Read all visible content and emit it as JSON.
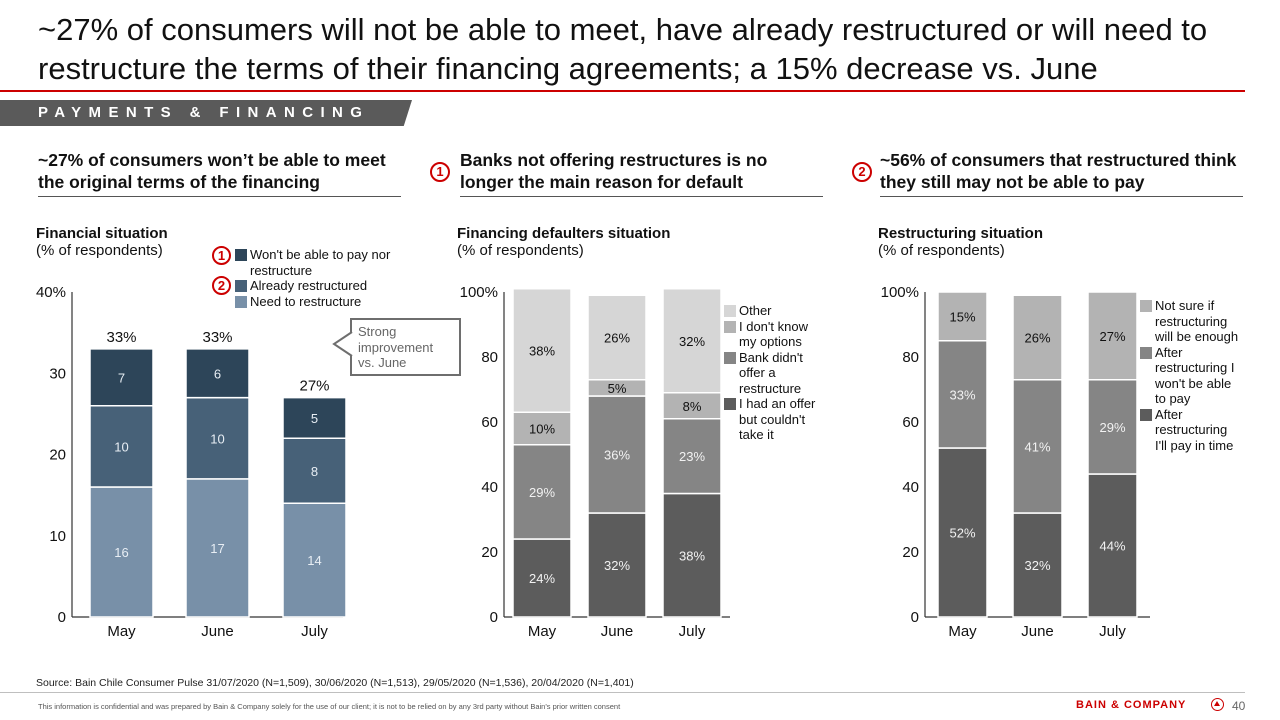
{
  "header": {
    "title": "~27% of consumers will not be able to meet, have already restructured or will need to restructure the terms of their financing agreements; a 15% decrease vs. June",
    "section": "PAYMENTS & FINANCING"
  },
  "panels": [
    {
      "badge": "",
      "heading": "~27% of consumers won’t be able to meet the original terms of the financing",
      "chart_title": "Financial situation",
      "chart_subtitle": "(% of respondents)"
    },
    {
      "badge": "1",
      "heading": "Banks not offering restructures is no longer the main reason for default",
      "chart_title": "Financing defaulters situation",
      "chart_subtitle": "(% of respondents)"
    },
    {
      "badge": "2",
      "heading": "~56% of consumers that restructured think they still may not be able to pay",
      "chart_title": "Restructuring situation",
      "chart_subtitle": "(% of respondents)"
    }
  ],
  "legend1_badges": [
    "1",
    "2"
  ],
  "callout": {
    "line1": "Strong",
    "line2": "improvement",
    "line3": "vs. June"
  },
  "colors": {
    "brand_red": "#cc0000",
    "banner_gray": "#5a5a5a"
  },
  "chart_data": [
    {
      "type": "bar",
      "stacked": true,
      "title": "Financial situation",
      "subtitle": "(% of respondents)",
      "categories": [
        "May",
        "June",
        "July"
      ],
      "ylim": [
        0,
        40
      ],
      "yticks": [
        "0",
        "10",
        "20",
        "30",
        "40%"
      ],
      "totals": [
        "33%",
        "33%",
        "27%"
      ],
      "total_values": [
        33,
        33,
        27
      ],
      "series": [
        {
          "name": "Need to restructure",
          "color": "#7890a8",
          "label_color": "#e8eef4",
          "values": [
            16,
            17,
            14
          ],
          "labels": [
            "16",
            "17",
            "14"
          ]
        },
        {
          "name": "Already restructured",
          "color": "#476178",
          "label_color": "#e8eef4",
          "values": [
            10,
            10,
            8
          ],
          "labels": [
            "10",
            "10",
            "8"
          ]
        },
        {
          "name": "Won't be able to pay nor restructure",
          "color": "#2d4559",
          "label_color": "#e8eef4",
          "values": [
            7,
            6,
            5
          ],
          "labels": [
            "7",
            "6",
            "5"
          ]
        }
      ],
      "legend": [
        "Won't be able to pay nor restructure",
        "Already restructured",
        "Need to restructure"
      ],
      "legend_placement": "top-right",
      "annotation": "Strong improvement vs. June"
    },
    {
      "type": "bar",
      "stacked": true,
      "title": "Financing defaulters situation",
      "subtitle": "(% of respondents)",
      "categories": [
        "May",
        "June",
        "July"
      ],
      "ylim": [
        0,
        100
      ],
      "yticks": [
        "0",
        "20",
        "40",
        "60",
        "80",
        "100%"
      ],
      "series": [
        {
          "name": "I had an offer but couldn't take it",
          "color": "#5c5c5c",
          "label_color": "#f2f2f2",
          "values": [
            24,
            32,
            38
          ],
          "labels": [
            "24%",
            "32%",
            "38%"
          ]
        },
        {
          "name": "Bank didn't offer a restructure",
          "color": "#858585",
          "label_color": "#f2f2f2",
          "values": [
            29,
            36,
            23
          ],
          "labels": [
            "29%",
            "36%",
            "23%"
          ]
        },
        {
          "name": "I don't know my options",
          "color": "#b3b3b3",
          "label_color": "#111111",
          "values": [
            10,
            5,
            8
          ],
          "labels": [
            "10%",
            "5%",
            "8%"
          ]
        },
        {
          "name": "Other",
          "color": "#d6d6d6",
          "label_color": "#111111",
          "values": [
            38,
            26,
            32
          ],
          "labels": [
            "38%",
            "26%",
            "32%"
          ]
        }
      ],
      "legend": [
        "Other",
        "I don't know my options",
        "Bank didn't offer a restructure",
        "I had an offer but couldn't take it"
      ],
      "legend_placement": "right"
    },
    {
      "type": "bar",
      "stacked": true,
      "title": "Restructuring situation",
      "subtitle": "(% of respondents)",
      "categories": [
        "May",
        "June",
        "July"
      ],
      "ylim": [
        0,
        100
      ],
      "yticks": [
        "0",
        "20",
        "40",
        "60",
        "80",
        "100%"
      ],
      "series": [
        {
          "name": "After restructuring I'll pay in time",
          "color": "#5c5c5c",
          "label_color": "#f2f2f2",
          "values": [
            52,
            32,
            44
          ],
          "labels": [
            "52%",
            "32%",
            "44%"
          ]
        },
        {
          "name": "After restructuring I won't be able to pay",
          "color": "#858585",
          "label_color": "#f2f2f2",
          "values": [
            33,
            41,
            29
          ],
          "labels": [
            "33%",
            "41%",
            "29%"
          ]
        },
        {
          "name": "Not sure if restructuring will be enough",
          "color": "#b3b3b3",
          "label_color": "#111111",
          "values": [
            15,
            26,
            27
          ],
          "labels": [
            "15%",
            "26%",
            "27%"
          ]
        }
      ],
      "legend": [
        "Not sure if restructuring will be enough",
        "After restructuring I won't be able to pay",
        "After restructuring I'll pay in time"
      ],
      "legend_placement": "right"
    }
  ],
  "footer": {
    "source": "Source: Bain Chile Consumer Pulse 31/07/2020 (N=1,509), 30/06/2020 (N=1,513), 29/05/2020 (N=1,536), 20/04/2020 (N=1,401)",
    "disclaimer": "This information is confidential and was prepared by Bain & Company solely for the use of our client; it is not to be relied on by any 3rd party without Bain's prior written consent",
    "brand": "BAIN & COMPANY",
    "page_number": "40"
  }
}
